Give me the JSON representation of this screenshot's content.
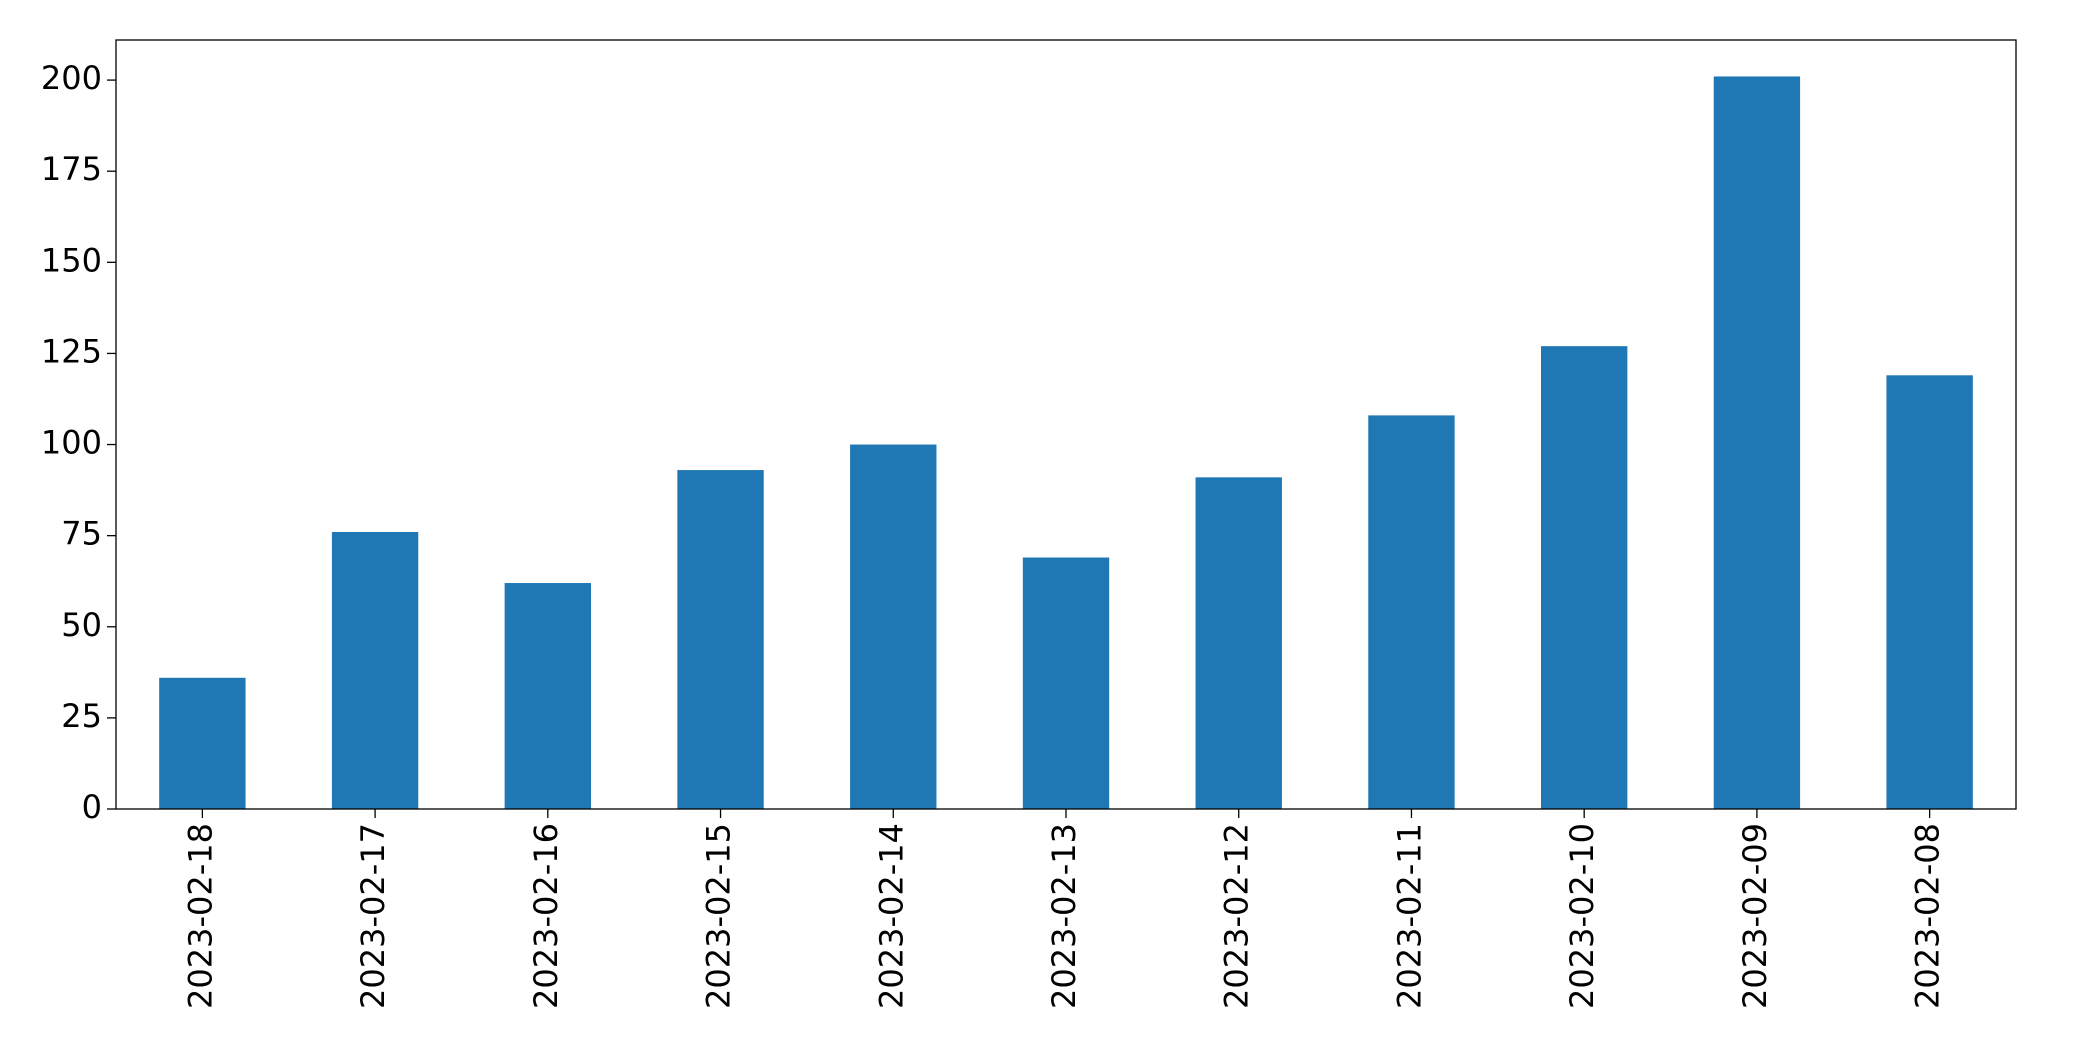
{
  "chart_data": {
    "type": "bar",
    "categories": [
      "2023-02-18",
      "2023-02-17",
      "2023-02-16",
      "2023-02-15",
      "2023-02-14",
      "2023-02-13",
      "2023-02-12",
      "2023-02-11",
      "2023-02-10",
      "2023-02-09",
      "2023-02-08"
    ],
    "values": [
      36,
      76,
      62,
      93,
      100,
      69,
      91,
      108,
      127,
      201,
      119
    ],
    "color": "#1f77b4",
    "ylim": [
      0,
      211
    ],
    "yticks": [
      0,
      25,
      50,
      75,
      100,
      125,
      150,
      175,
      200
    ],
    "grid": false
  }
}
